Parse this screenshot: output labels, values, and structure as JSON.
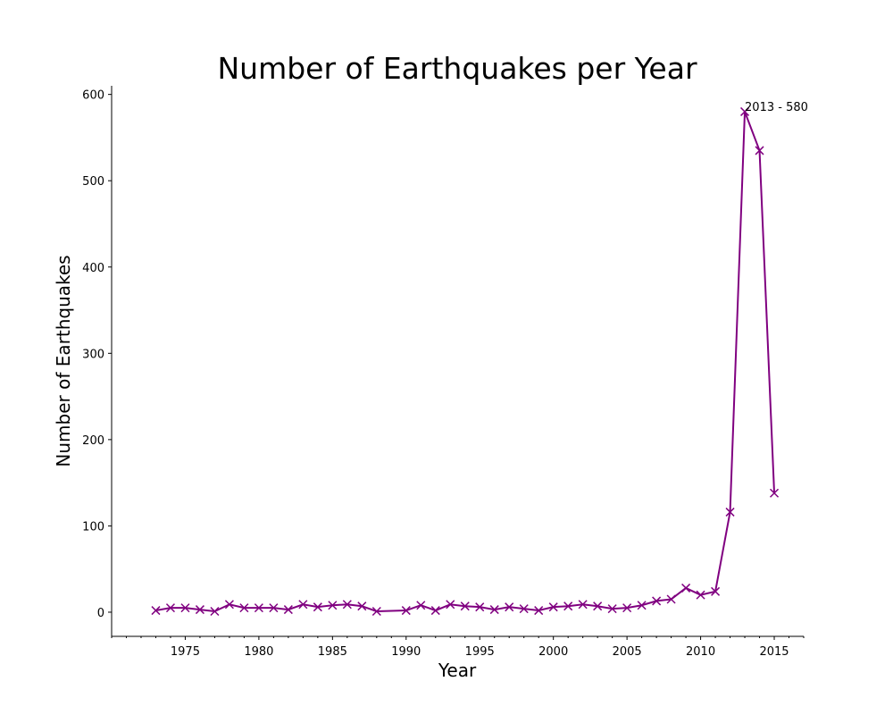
{
  "chart_data": {
    "type": "line",
    "title": "Number of Earthquakes per Year",
    "xlabel": "Year",
    "ylabel": "Number of Earthquakes",
    "xlim": [
      1970,
      2017
    ],
    "ylim": [
      -28,
      610
    ],
    "x_major_ticks": [
      1975,
      1980,
      1985,
      1990,
      1995,
      2000,
      2005,
      2010,
      2015
    ],
    "x_minor_step": 1,
    "y_ticks": [
      0,
      100,
      200,
      300,
      400,
      500,
      600
    ],
    "grid": false,
    "line_color": "#800080",
    "marker": "x",
    "series": [
      {
        "x": [
          1973,
          1974,
          1975,
          1976,
          1977,
          1978,
          1979,
          1980,
          1981,
          1982,
          1983,
          1984,
          1985,
          1986,
          1987,
          1988,
          1990,
          1991,
          1992,
          1993,
          1994,
          1995,
          1996,
          1997,
          1998,
          1999,
          2000,
          2001,
          2002,
          2003,
          2004,
          2005,
          2006,
          2007,
          2008,
          2009,
          2010,
          2011,
          2012,
          2013,
          2014,
          2015
        ],
        "y": [
          2,
          5,
          5,
          3,
          1,
          9,
          5,
          5,
          5,
          3,
          9,
          6,
          8,
          9,
          7,
          1,
          2,
          8,
          2,
          9,
          7,
          6,
          3,
          6,
          4,
          2,
          6,
          7,
          9,
          7,
          4,
          5,
          8,
          13,
          15,
          28,
          20,
          24,
          116,
          580,
          535,
          138
        ]
      }
    ],
    "annotations": [
      {
        "text": "2013 - 580",
        "x": 2013,
        "y": 580
      }
    ]
  }
}
